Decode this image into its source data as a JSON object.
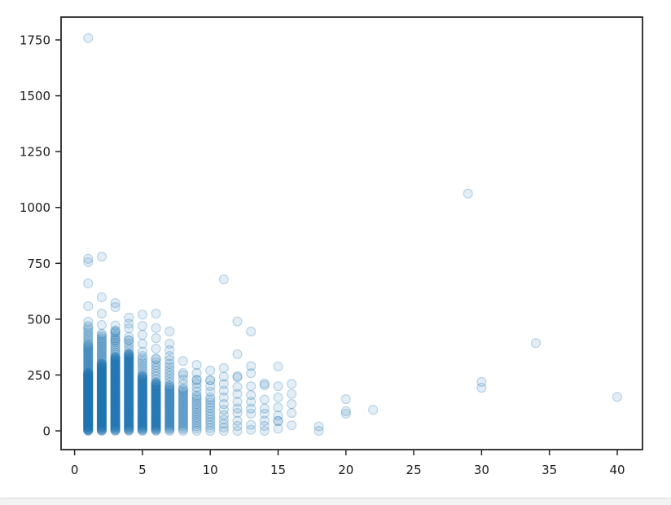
{
  "chart_data": {
    "type": "scatter",
    "title": "",
    "xlabel": "",
    "ylabel": "",
    "grid": false,
    "legend": "none",
    "xlim": [
      -1.0,
      41.9
    ],
    "ylim": [
      -84,
      1852
    ],
    "x_ticks": [
      0,
      5,
      10,
      15,
      20,
      25,
      30,
      35,
      40
    ],
    "y_ticks": [
      0,
      250,
      500,
      750,
      1000,
      1250,
      1500,
      1750
    ],
    "marker": {
      "color": "#1f77b4",
      "fill_opacity": 0.13,
      "edge_opacity": 0.28,
      "radius_px": 5.5
    },
    "axes_style": {
      "spine_color": "#262626",
      "tick_color": "#262626",
      "tick_label_color": "#1a1a1a",
      "tick_font_px": 15,
      "background": "#ffffff"
    },
    "dense_columns": [
      {
        "x": 1,
        "segments": [
          {
            "y0": 0,
            "y1": 260,
            "n": 160
          },
          {
            "y0": 262,
            "y1": 385,
            "n": 26
          },
          {
            "y0": 390,
            "y1": 470,
            "n": 9
          }
        ]
      },
      {
        "x": 2,
        "segments": [
          {
            "y0": 0,
            "y1": 300,
            "n": 150
          },
          {
            "y0": 302,
            "y1": 435,
            "n": 20
          }
        ]
      },
      {
        "x": 3,
        "segments": [
          {
            "y0": 0,
            "y1": 330,
            "n": 140
          },
          {
            "y0": 332,
            "y1": 450,
            "n": 14
          }
        ]
      },
      {
        "x": 4,
        "segments": [
          {
            "y0": 0,
            "y1": 345,
            "n": 130
          },
          {
            "y0": 348,
            "y1": 420,
            "n": 6
          }
        ]
      },
      {
        "x": 5,
        "segments": [
          {
            "y0": 0,
            "y1": 245,
            "n": 90
          },
          {
            "y0": 248,
            "y1": 335,
            "n": 9
          }
        ]
      },
      {
        "x": 6,
        "segments": [
          {
            "y0": 0,
            "y1": 215,
            "n": 80
          },
          {
            "y0": 218,
            "y1": 320,
            "n": 9
          }
        ]
      },
      {
        "x": 7,
        "segments": [
          {
            "y0": 0,
            "y1": 200,
            "n": 45
          },
          {
            "y0": 204,
            "y1": 300,
            "n": 8
          }
        ]
      },
      {
        "x": 8,
        "segments": [
          {
            "y0": 0,
            "y1": 185,
            "n": 28
          },
          {
            "y0": 190,
            "y1": 250,
            "n": 4
          }
        ]
      },
      {
        "x": 9,
        "segments": [
          {
            "y0": 0,
            "y1": 150,
            "n": 16
          },
          {
            "y0": 158,
            "y1": 230,
            "n": 5
          }
        ]
      },
      {
        "x": 10,
        "segments": [
          {
            "y0": 0,
            "y1": 140,
            "n": 12
          },
          {
            "y0": 150,
            "y1": 226,
            "n": 4
          }
        ]
      }
    ],
    "points": [
      [
        1,
        489
      ],
      [
        1,
        558
      ],
      [
        1,
        660
      ],
      [
        1,
        755
      ],
      [
        1,
        770
      ],
      [
        1,
        1758
      ],
      [
        2,
        474
      ],
      [
        2,
        525
      ],
      [
        2,
        598
      ],
      [
        2,
        780
      ],
      [
        3,
        405
      ],
      [
        3,
        445
      ],
      [
        3,
        472
      ],
      [
        3,
        554
      ],
      [
        3,
        572
      ],
      [
        4,
        405
      ],
      [
        4,
        459
      ],
      [
        4,
        480
      ],
      [
        4,
        507
      ],
      [
        5,
        354
      ],
      [
        5,
        390
      ],
      [
        5,
        430
      ],
      [
        5,
        470
      ],
      [
        5,
        520
      ],
      [
        6,
        324
      ],
      [
        6,
        368
      ],
      [
        6,
        415
      ],
      [
        6,
        460
      ],
      [
        6,
        525
      ],
      [
        7,
        317
      ],
      [
        7,
        335
      ],
      [
        7,
        361
      ],
      [
        7,
        390
      ],
      [
        7,
        445
      ],
      [
        8,
        259
      ],
      [
        8,
        313
      ],
      [
        9,
        226
      ],
      [
        9,
        259
      ],
      [
        9,
        295
      ],
      [
        10,
        226
      ],
      [
        10,
        270
      ],
      [
        11,
        0
      ],
      [
        11,
        15
      ],
      [
        11,
        32
      ],
      [
        11,
        50
      ],
      [
        11,
        70
      ],
      [
        11,
        95
      ],
      [
        11,
        120
      ],
      [
        11,
        150
      ],
      [
        11,
        180
      ],
      [
        11,
        210
      ],
      [
        11,
        242
      ],
      [
        11,
        281
      ],
      [
        11,
        678
      ],
      [
        12,
        0
      ],
      [
        12,
        22
      ],
      [
        12,
        45
      ],
      [
        12,
        80
      ],
      [
        12,
        100
      ],
      [
        12,
        130
      ],
      [
        12,
        165
      ],
      [
        12,
        197
      ],
      [
        12,
        240
      ],
      [
        12,
        245
      ],
      [
        12,
        343
      ],
      [
        12,
        490
      ],
      [
        13,
        5
      ],
      [
        13,
        27
      ],
      [
        13,
        77
      ],
      [
        13,
        100
      ],
      [
        13,
        130
      ],
      [
        13,
        160
      ],
      [
        13,
        200
      ],
      [
        13,
        258
      ],
      [
        13,
        290
      ],
      [
        13,
        445
      ],
      [
        14,
        0
      ],
      [
        14,
        22
      ],
      [
        14,
        45
      ],
      [
        14,
        77
      ],
      [
        14,
        100
      ],
      [
        14,
        140
      ],
      [
        14,
        204
      ],
      [
        14,
        212
      ],
      [
        15,
        10
      ],
      [
        15,
        44
      ],
      [
        15,
        44
      ],
      [
        15,
        69
      ],
      [
        15,
        105
      ],
      [
        15,
        150
      ],
      [
        15,
        200
      ],
      [
        15,
        288
      ],
      [
        16,
        25
      ],
      [
        16,
        80
      ],
      [
        16,
        120
      ],
      [
        16,
        165
      ],
      [
        16,
        210
      ],
      [
        18,
        0
      ],
      [
        18,
        20
      ],
      [
        20,
        77
      ],
      [
        20,
        88
      ],
      [
        20,
        142
      ],
      [
        22,
        94
      ],
      [
        29,
        1062
      ],
      [
        30,
        193
      ],
      [
        30,
        219
      ],
      [
        34,
        393
      ],
      [
        40,
        152
      ]
    ]
  },
  "footer": {
    "divider_color": "#d9d9d9",
    "background_color": "#f3f3f3"
  }
}
